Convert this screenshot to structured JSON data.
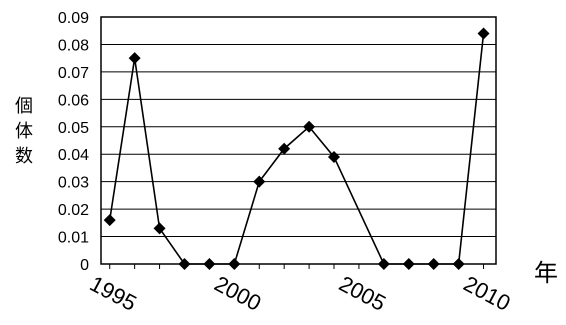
{
  "chart_data": {
    "type": "line",
    "xlabel": "年",
    "ylabel": "個体数",
    "ylim": [
      0,
      0.09
    ],
    "xlim": [
      1995,
      2010
    ],
    "grid": true,
    "legend": "none",
    "y_ticks": [
      "0",
      "0.01",
      "0.02",
      "0.03",
      "0.04",
      "0.05",
      "0.06",
      "0.07",
      "0.08",
      "0.09"
    ],
    "x_tick_labels": [
      {
        "x": 1995,
        "label": "1995"
      },
      {
        "x": 2000,
        "label": "2000"
      },
      {
        "x": 2005,
        "label": "2005"
      },
      {
        "x": 2010,
        "label": "2010"
      }
    ],
    "series": [
      {
        "color": "#000000",
        "marker": "diamond",
        "points": [
          {
            "x": 1995,
            "y": 0.016
          },
          {
            "x": 1996,
            "y": 0.075
          },
          {
            "x": 1997,
            "y": 0.013
          },
          {
            "x": 1998,
            "y": 0
          },
          {
            "x": 1999,
            "y": 0
          },
          {
            "x": 2000,
            "y": 0
          },
          {
            "x": 2001,
            "y": 0.03
          },
          {
            "x": 2002,
            "y": 0.042
          },
          {
            "x": 2003,
            "y": 0.05
          },
          {
            "x": 2004,
            "y": 0.039
          },
          {
            "x": 2006,
            "y": 0
          },
          {
            "x": 2007,
            "y": 0
          },
          {
            "x": 2008,
            "y": 0
          },
          {
            "x": 2009,
            "y": 0
          },
          {
            "x": 2010,
            "y": 0.084
          }
        ]
      }
    ]
  }
}
